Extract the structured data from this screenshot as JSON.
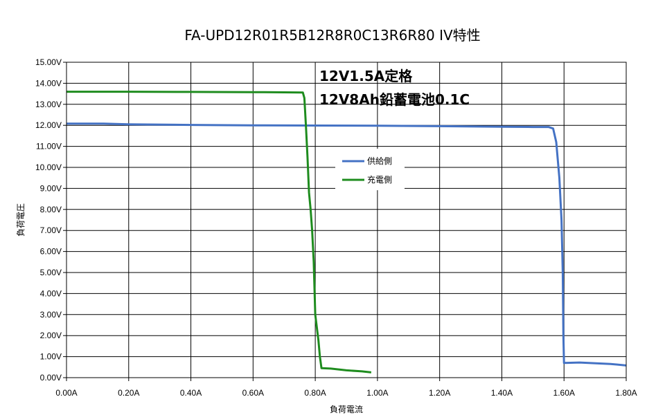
{
  "chart_data": {
    "type": "line",
    "title": "FA-UPD12R01R5B12R8R0C13R6R80 IV特性",
    "xlabel": "負荷電流",
    "ylabel": "負荷電圧",
    "xlim": [
      0,
      1.8
    ],
    "ylim": [
      0,
      15
    ],
    "x_ticks": [
      "0.00A",
      "0.20A",
      "0.40A",
      "0.60A",
      "0.80A",
      "1.00A",
      "1.20A",
      "1.40A",
      "1.60A",
      "1.80A"
    ],
    "y_ticks": [
      "0.00V",
      "1.00V",
      "2.00V",
      "3.00V",
      "4.00V",
      "5.00V",
      "6.00V",
      "7.00V",
      "8.00V",
      "9.00V",
      "10.00V",
      "11.00V",
      "12.00V",
      "13.00V",
      "14.00V",
      "15.00V"
    ],
    "grid": true,
    "legend_position": "center",
    "annotations": [
      "12V1.5A定格",
      "12V8Ah鉛蓄電池0.1C"
    ],
    "series": [
      {
        "name": "供給側",
        "color": "#4472C4",
        "points": [
          [
            0,
            12.08
          ],
          [
            0.12,
            12.08
          ],
          [
            0.2,
            12.05
          ],
          [
            0.4,
            12.02
          ],
          [
            0.6,
            12.0
          ],
          [
            0.8,
            11.99
          ],
          [
            1.0,
            11.98
          ],
          [
            1.2,
            11.96
          ],
          [
            1.4,
            11.93
          ],
          [
            1.5,
            11.92
          ],
          [
            1.55,
            11.92
          ],
          [
            1.565,
            11.85
          ],
          [
            1.575,
            11.2
          ],
          [
            1.585,
            9.5
          ],
          [
            1.592,
            7.5
          ],
          [
            1.596,
            5.0
          ],
          [
            1.598,
            2.0
          ],
          [
            1.6,
            0.7
          ],
          [
            1.65,
            0.72
          ],
          [
            1.75,
            0.65
          ],
          [
            1.8,
            0.58
          ]
        ]
      },
      {
        "name": "充電側",
        "color": "#1E8C1E",
        "points": [
          [
            0,
            13.6
          ],
          [
            0.2,
            13.6
          ],
          [
            0.4,
            13.59
          ],
          [
            0.6,
            13.58
          ],
          [
            0.7,
            13.57
          ],
          [
            0.76,
            13.56
          ],
          [
            0.765,
            13.3
          ],
          [
            0.77,
            12.0
          ],
          [
            0.775,
            10.5
          ],
          [
            0.78,
            8.8
          ],
          [
            0.785,
            8.0
          ],
          [
            0.79,
            7.0
          ],
          [
            0.795,
            5.5
          ],
          [
            0.8,
            3.0
          ],
          [
            0.81,
            1.8
          ],
          [
            0.815,
            1.0
          ],
          [
            0.82,
            0.45
          ],
          [
            0.85,
            0.43
          ],
          [
            0.9,
            0.35
          ],
          [
            0.95,
            0.3
          ],
          [
            0.98,
            0.25
          ]
        ]
      }
    ]
  }
}
